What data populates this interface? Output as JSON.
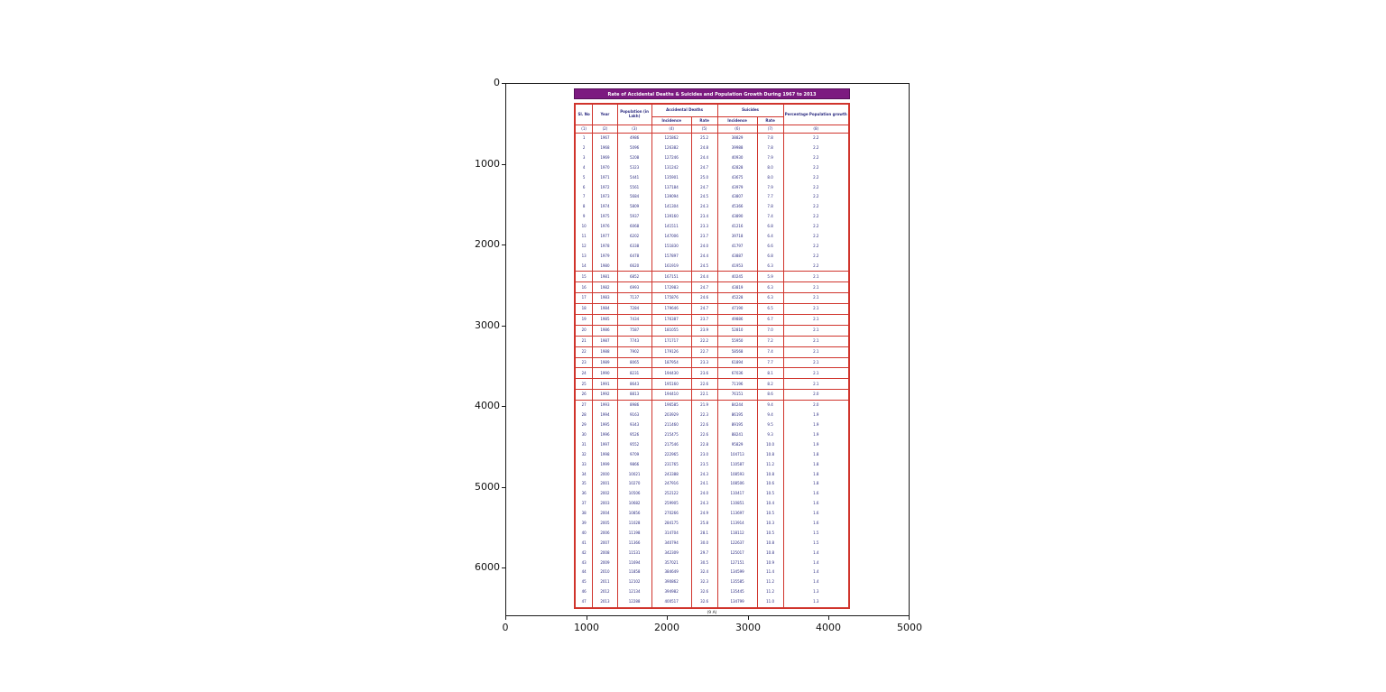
{
  "axes": {
    "x_ticks": [
      "0",
      "1000",
      "2000",
      "3000",
      "4000",
      "5000"
    ],
    "y_ticks": [
      "0",
      "1000",
      "2000",
      "3000",
      "4000",
      "5000",
      "6000"
    ]
  },
  "document": {
    "title": "Rate of Accidental Deaths & Suicides and Population Growth During 1967 to 2013",
    "caption": "(9 A)",
    "title_bg": "#7c1a80",
    "border_color": "#d0342c",
    "text_color": "#2b2b80",
    "headers": {
      "sl_no": "Sl. No",
      "year": "Year",
      "population": "Population (in Lakh)",
      "accidental_deaths": "Accidental Deaths",
      "suicides": "Suicides",
      "incidence": "Incidence",
      "rate": "Rate",
      "pct_growth": "Percentage Population growth",
      "col_numbers": [
        "(1)",
        "(2)",
        "(3)",
        "(4)",
        "(5)",
        "(6)",
        "(7)",
        "(8)"
      ]
    }
  },
  "chart_data": {
    "type": "table",
    "title": "Rate of Accidental Deaths & Suicides and Population Growth During 1967 to 2013",
    "columns": [
      "Sl. No",
      "Year",
      "Population (in Lakh)",
      "Accidental Deaths Incidence",
      "Accidental Deaths Rate",
      "Suicides Incidence",
      "Suicides Rate",
      "Percentage Population growth"
    ],
    "rows": [
      [
        1,
        1967,
        4986,
        125862,
        "25.2",
        38829,
        "7.8",
        "2.2"
      ],
      [
        2,
        1968,
        5096,
        126382,
        "24.8",
        39988,
        "7.8",
        "2.2"
      ],
      [
        3,
        1969,
        5208,
        127246,
        "24.4",
        40930,
        "7.9",
        "2.2"
      ],
      [
        4,
        1970,
        5323,
        131242,
        "24.7",
        42828,
        "8.0",
        "2.2"
      ],
      [
        5,
        1971,
        5441,
        135901,
        "25.0",
        43675,
        "8.0",
        "2.2"
      ],
      [
        6,
        1972,
        5561,
        137184,
        "24.7",
        43979,
        "7.9",
        "2.2"
      ],
      [
        7,
        1973,
        5684,
        139094,
        "24.5",
        43807,
        "7.7",
        "2.2"
      ],
      [
        8,
        1974,
        5809,
        141304,
        "24.3",
        45366,
        "7.8",
        "2.2"
      ],
      [
        9,
        1975,
        5937,
        139160,
        "23.4",
        43890,
        "7.4",
        "2.2"
      ],
      [
        10,
        1976,
        6068,
        141511,
        "23.3",
        41216,
        "6.8",
        "2.2"
      ],
      [
        11,
        1977,
        6202,
        147006,
        "23.7",
        39718,
        "6.4",
        "2.2"
      ],
      [
        12,
        1978,
        6338,
        151830,
        "24.0",
        41797,
        "6.6",
        "2.2"
      ],
      [
        13,
        1979,
        6478,
        157897,
        "24.4",
        43887,
        "6.8",
        "2.2"
      ],
      [
        14,
        1980,
        6620,
        161919,
        "24.5",
        41953,
        "6.3",
        "2.2"
      ],
      [
        15,
        1981,
        6852,
        167151,
        "24.4",
        40245,
        "5.9",
        "2.1"
      ],
      [
        16,
        1982,
        6993,
        172983,
        "24.7",
        43819,
        "6.3",
        "2.1"
      ],
      [
        17,
        1983,
        7137,
        175876,
        "24.6",
        45228,
        "6.3",
        "2.1"
      ],
      [
        18,
        1984,
        7284,
        179646,
        "24.7",
        47190,
        "6.5",
        "2.1"
      ],
      [
        19,
        1985,
        7434,
        176387,
        "23.7",
        49886,
        "6.7",
        "2.1"
      ],
      [
        20,
        1986,
        7587,
        181055,
        "23.9",
        52810,
        "7.0",
        "2.1"
      ],
      [
        21,
        1987,
        7743,
        171717,
        "22.2",
        55950,
        "7.2",
        "2.1"
      ],
      [
        22,
        1988,
        7902,
        179126,
        "22.7",
        58568,
        "7.4",
        "2.1"
      ],
      [
        23,
        1989,
        8065,
        187954,
        "23.3",
        61894,
        "7.7",
        "2.1"
      ],
      [
        24,
        1990,
        8231,
        194430,
        "23.6",
        67036,
        "8.1",
        "2.1"
      ],
      [
        25,
        1991,
        8643,
        195160,
        "22.6",
        71196,
        "8.2",
        "2.1"
      ],
      [
        26,
        1992,
        8813,
        194410,
        "22.1",
        76151,
        "8.6",
        "2.0"
      ],
      [
        27,
        1993,
        8986,
        196585,
        "21.9",
        84244,
        "9.4",
        "2.0"
      ],
      [
        28,
        1994,
        9163,
        203929,
        "22.3",
        86195,
        "9.4",
        "1.9"
      ],
      [
        29,
        1995,
        9343,
        211460,
        "22.6",
        89195,
        "9.5",
        "1.9"
      ],
      [
        30,
        1996,
        9526,
        215475,
        "22.6",
        88241,
        "9.3",
        "1.9"
      ],
      [
        31,
        1997,
        9552,
        217546,
        "22.8",
        95829,
        "10.0",
        "1.9"
      ],
      [
        32,
        1998,
        9709,
        222965,
        "23.0",
        104713,
        "10.8",
        "1.8"
      ],
      [
        33,
        1999,
        9866,
        231765,
        "23.5",
        110587,
        "11.2",
        "1.8"
      ],
      [
        34,
        2000,
        10021,
        243388,
        "24.3",
        108593,
        "10.8",
        "1.8"
      ],
      [
        35,
        2001,
        10270,
        247916,
        "24.1",
        108506,
        "10.6",
        "1.8"
      ],
      [
        36,
        2002,
        10506,
        252122,
        "24.0",
        110417,
        "10.5",
        "1.6"
      ],
      [
        37,
        2003,
        10682,
        259905,
        "24.3",
        110851,
        "10.4",
        "1.6"
      ],
      [
        38,
        2004,
        10856,
        270266,
        "24.9",
        113697,
        "10.5",
        "1.6"
      ],
      [
        39,
        2005,
        11028,
        284175,
        "25.8",
        113914,
        "10.3",
        "1.6"
      ],
      [
        40,
        2006,
        11198,
        314704,
        "28.1",
        118112,
        "10.5",
        "1.5"
      ],
      [
        41,
        2007,
        11366,
        340794,
        "30.0",
        122637,
        "10.8",
        "1.5"
      ],
      [
        42,
        2008,
        11531,
        342309,
        "29.7",
        125017,
        "10.8",
        "1.4"
      ],
      [
        43,
        2009,
        11694,
        357021,
        "30.5",
        127151,
        "10.9",
        "1.4"
      ],
      [
        44,
        2010,
        11858,
        384649,
        "32.4",
        134599,
        "11.4",
        "1.4"
      ],
      [
        45,
        2011,
        12102,
        390862,
        "32.3",
        135585,
        "11.2",
        "1.4"
      ],
      [
        46,
        2012,
        12134,
        394982,
        "32.6",
        135445,
        "11.2",
        "1.3"
      ],
      [
        47,
        2013,
        12288,
        400517,
        "32.6",
        134799,
        "11.0",
        "1.3"
      ]
    ]
  }
}
